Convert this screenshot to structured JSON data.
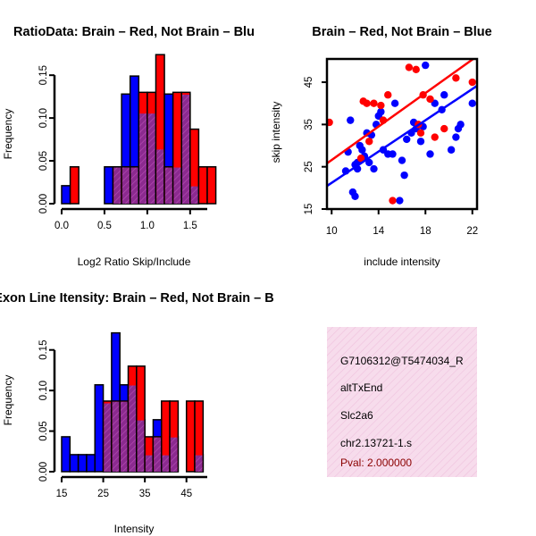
{
  "chart_data": [
    {
      "id": "ratio_hist",
      "type": "bar",
      "title": "RatioData: Brain – Red, Not Brain – Blu",
      "xlabel": "Log2 Ratio Skip/Include",
      "ylabel": "Frequency",
      "xlim": [
        0.0,
        1.7
      ],
      "ylim": [
        0.0,
        0.17
      ],
      "xticks": [
        "0.0",
        "0.5",
        "1.0",
        "1.5"
      ],
      "yticks": [
        "0.00",
        "0.05",
        "0.10",
        "0.15"
      ],
      "bin_width": 0.1,
      "bin_starts": [
        0.0,
        0.1,
        0.2,
        0.3,
        0.4,
        0.5,
        0.6,
        0.7,
        0.8,
        0.9,
        1.0,
        1.1,
        1.2,
        1.3,
        1.4,
        1.5,
        1.6,
        1.7
      ],
      "series": [
        {
          "name": "Brain",
          "color": "#ff0000",
          "values": [
            0.0,
            0.043,
            0.0,
            0.0,
            0.0,
            0.0,
            0.043,
            0.043,
            0.043,
            0.13,
            0.13,
            0.174,
            0.043,
            0.13,
            0.13,
            0.087,
            0.043,
            0.043
          ]
        },
        {
          "name": "Not Brain",
          "color": "#0000ff",
          "values": [
            0.021,
            0.0,
            0.0,
            0.0,
            0.0,
            0.043,
            0.043,
            0.128,
            0.149,
            0.106,
            0.106,
            0.064,
            0.128,
            0.043,
            0.128,
            0.021,
            0.0,
            0.0
          ]
        }
      ]
    },
    {
      "id": "scatter",
      "type": "scatter",
      "title": "Brain – Red, Not Brain – Blue",
      "xlabel": "include intensity",
      "ylabel": "skip intensity",
      "xlim": [
        9.6,
        22.4
      ],
      "ylim": [
        15,
        50.5
      ],
      "xticks": [
        "10",
        "14",
        "18",
        "22"
      ],
      "yticks": [
        "15",
        "25",
        "35",
        "45"
      ],
      "series": [
        {
          "name": "Brain",
          "color": "#ff0000",
          "fit": {
            "intercept": 6.8,
            "slope": 1.98
          },
          "points": [
            [
              9.8,
              35.5
            ],
            [
              12.7,
              40.5
            ],
            [
              13.0,
              40
            ],
            [
              13.6,
              40
            ],
            [
              14.2,
              39.5
            ],
            [
              14.4,
              36
            ],
            [
              14.8,
              42
            ],
            [
              15.2,
              17
            ],
            [
              16.6,
              48.5
            ],
            [
              17.2,
              48
            ],
            [
              17.8,
              42
            ],
            [
              17.4,
              35
            ],
            [
              17.6,
              33
            ],
            [
              18.4,
              41
            ],
            [
              18.8,
              32
            ],
            [
              19.6,
              34
            ],
            [
              20.6,
              46
            ],
            [
              22.0,
              45
            ],
            [
              13.2,
              31
            ],
            [
              12.5,
              27
            ]
          ]
        },
        {
          "name": "Not Brain",
          "color": "#0000ff",
          "fit": {
            "intercept": 2.7,
            "slope": 1.85
          },
          "points": [
            [
              11.2,
              24
            ],
            [
              11.4,
              28.5
            ],
            [
              11.6,
              36
            ],
            [
              11.8,
              19
            ],
            [
              12.0,
              18
            ],
            [
              12.0,
              25.5
            ],
            [
              12.2,
              26
            ],
            [
              12.2,
              24.5
            ],
            [
              12.4,
              30
            ],
            [
              12.6,
              29
            ],
            [
              12.8,
              27.5
            ],
            [
              13.0,
              33
            ],
            [
              13.2,
              26
            ],
            [
              13.4,
              32.5
            ],
            [
              13.6,
              24.5
            ],
            [
              13.8,
              35
            ],
            [
              14.0,
              37
            ],
            [
              14.2,
              38
            ],
            [
              14.4,
              29
            ],
            [
              14.8,
              28
            ],
            [
              15.2,
              28
            ],
            [
              15.4,
              40
            ],
            [
              15.8,
              17
            ],
            [
              16.0,
              26.5
            ],
            [
              16.2,
              23
            ],
            [
              16.4,
              31.5
            ],
            [
              16.8,
              33
            ],
            [
              17.0,
              35.5
            ],
            [
              17.2,
              34
            ],
            [
              17.6,
              31
            ],
            [
              17.8,
              34.5
            ],
            [
              18.0,
              49
            ],
            [
              18.4,
              28
            ],
            [
              18.8,
              40
            ],
            [
              19.4,
              38.5
            ],
            [
              19.6,
              42
            ],
            [
              20.2,
              29
            ],
            [
              20.6,
              32
            ],
            [
              20.8,
              34
            ],
            [
              21.0,
              35
            ],
            [
              22.0,
              40
            ]
          ]
        }
      ]
    },
    {
      "id": "intensity_hist",
      "type": "bar",
      "title": "Exon Line Itensity: Brain – Red, Not Brain – B",
      "xlabel": "Intensity",
      "ylabel": "Frequency",
      "xlim": [
        15,
        50
      ],
      "ylim": [
        0.0,
        0.175
      ],
      "xticks": [
        "15",
        "25",
        "35",
        "45"
      ],
      "yticks": [
        "0.00",
        "0.05",
        "0.10",
        "0.15"
      ],
      "bin_width": 2,
      "bin_starts": [
        15,
        17,
        19,
        21,
        23,
        25,
        27,
        29,
        31,
        33,
        35,
        37,
        39,
        41,
        43,
        45,
        47
      ],
      "series": [
        {
          "name": "Brain",
          "color": "#ff0000",
          "values": [
            0.0,
            0.0,
            0.0,
            0.0,
            0.0,
            0.087,
            0.087,
            0.087,
            0.13,
            0.13,
            0.043,
            0.043,
            0.087,
            0.087,
            0.0,
            0.087,
            0.087
          ]
        },
        {
          "name": "Not Brain",
          "color": "#0000ff",
          "values": [
            0.043,
            0.021,
            0.021,
            0.021,
            0.107,
            0.085,
            0.171,
            0.107,
            0.107,
            0.064,
            0.021,
            0.064,
            0.021,
            0.043,
            0.0,
            0.0,
            0.021
          ]
        }
      ]
    }
  ],
  "info_panel": {
    "background": "#f5d6ea",
    "lines": [
      "G7106312@T5474034_R",
      "altTxEnd",
      "Slc2a6",
      "chr2.13721-1.s"
    ],
    "pval": "Pval: 2.000000"
  }
}
